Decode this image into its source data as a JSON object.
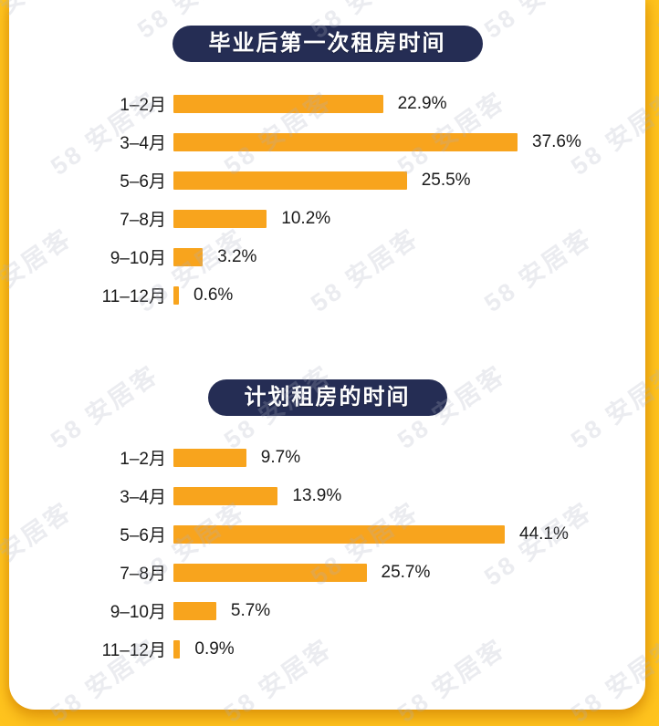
{
  "watermark": {
    "text": "58 安居客"
  },
  "colors": {
    "background": "#FFC41E",
    "card": "#FFFFFF",
    "bar": "#F8A41D",
    "title_pill_bg": "#252D54",
    "title_pill_text": "#FFFFFF",
    "label_text": "#1B1B1B"
  },
  "chart_data": [
    {
      "type": "bar",
      "orientation": "horizontal",
      "title": "毕业后第一次租房时间",
      "categories": [
        "1–2月",
        "3–4月",
        "5–6月",
        "7–8月",
        "9–10月",
        "11–12月"
      ],
      "values": [
        22.9,
        37.6,
        25.5,
        10.2,
        3.2,
        0.6
      ],
      "value_labels": [
        "22.9%",
        "37.6%",
        "25.5%",
        "10.2%",
        "3.2%",
        "0.6%"
      ],
      "unit": "%",
      "grid": false,
      "legend": "none",
      "value_range": [
        0,
        37.6
      ]
    },
    {
      "type": "bar",
      "orientation": "horizontal",
      "title": "计划租房的时间",
      "categories": [
        "1–2月",
        "3–4月",
        "5–6月",
        "7–8月",
        "9–10月",
        "11–12月"
      ],
      "values": [
        9.7,
        13.9,
        44.1,
        25.7,
        5.7,
        0.9
      ],
      "value_labels": [
        "9.7%",
        "13.9%",
        "44.1%",
        "25.7%",
        "5.7%",
        "0.9%"
      ],
      "unit": "%",
      "grid": false,
      "legend": "none",
      "value_range": [
        0,
        44.1
      ]
    }
  ]
}
